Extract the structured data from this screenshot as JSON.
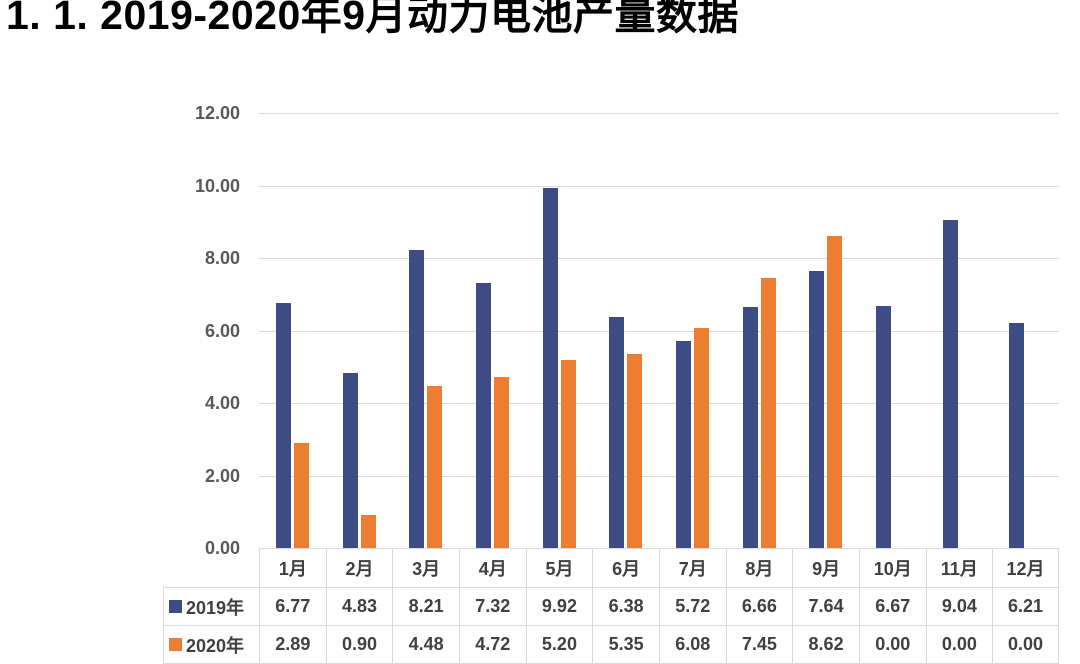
{
  "title": "1. 1.  2019-2020年9月动力电池产量数据",
  "colors": {
    "series_2019": "#3E4C86",
    "series_2020": "#ED7D31",
    "gridline": "#D9D9D9",
    "table_border": "#D9D9D9",
    "axis_text": "#595959",
    "table_text": "#404040",
    "title_text": "#000000"
  },
  "chart_data": {
    "type": "bar",
    "title": "",
    "xlabel": "",
    "ylabel": "",
    "categories": [
      "1月",
      "2月",
      "3月",
      "4月",
      "5月",
      "6月",
      "7月",
      "8月",
      "9月",
      "10月",
      "11月",
      "12月"
    ],
    "series": [
      {
        "name": "2019年",
        "color": "#3E4C86",
        "values": [
          6.77,
          4.83,
          8.21,
          7.32,
          9.92,
          6.38,
          5.72,
          6.66,
          7.64,
          6.67,
          9.04,
          6.21
        ]
      },
      {
        "name": "2020年",
        "color": "#ED7D31",
        "values": [
          2.89,
          0.9,
          4.48,
          4.72,
          5.2,
          5.35,
          6.08,
          7.45,
          8.62,
          0,
          0,
          0
        ]
      }
    ],
    "ylim": [
      0,
      12
    ],
    "ytick_step": 2,
    "yticks": [
      "0.00",
      "2.00",
      "4.00",
      "6.00",
      "8.00",
      "10.00",
      "12.00"
    ],
    "grid": true,
    "legend_position": "data-table-left",
    "value_format": "2-decimals",
    "data_table": true
  }
}
